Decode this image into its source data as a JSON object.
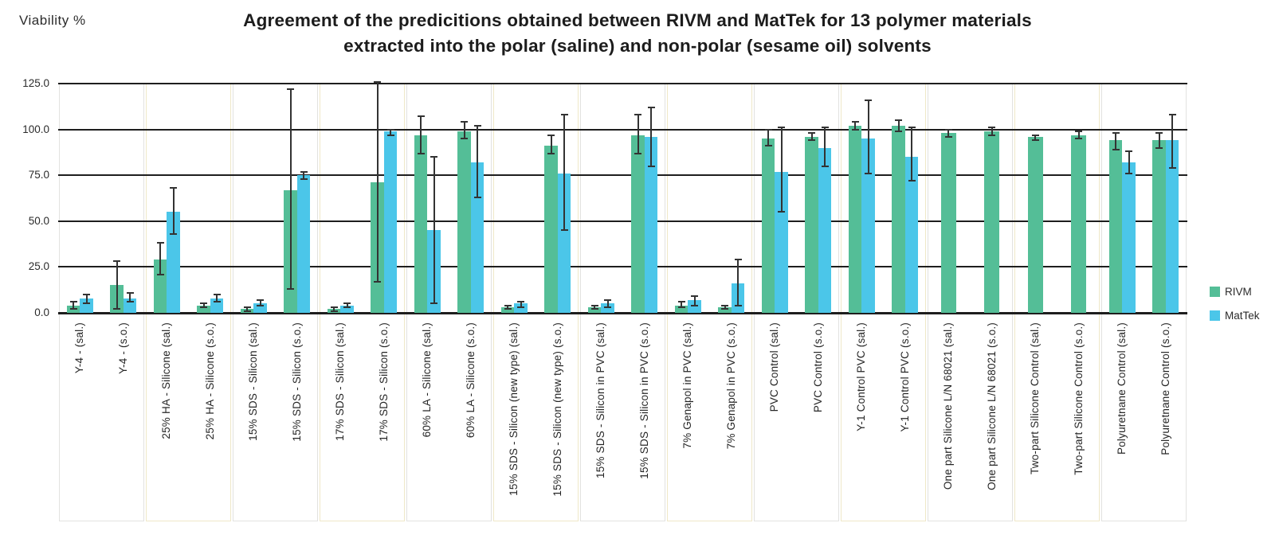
{
  "y_axis_title": "Viability %",
  "title": {
    "line1": "Agreement of the predicitions obtained between RIVM and MatTek for 13 polymer materials",
    "line2": "extracted into the polar (saline) and non-polar (sesame oil) solvents"
  },
  "legend": {
    "items": [
      {
        "label": "RIVM",
        "color": "#54BE97"
      },
      {
        "label": "MatTek",
        "color": "#4BC6E9"
      }
    ]
  },
  "chart_data": {
    "type": "bar",
    "title": "Agreement of the predicitions obtained between RIVM and MatTek for 13 polymer materials extracted into the polar (saline) and non-polar (sesame oil) solvents",
    "xlabel": "",
    "ylabel": "Viability %",
    "ylim": [
      0,
      125
    ],
    "yticks": [
      0,
      25,
      50,
      75,
      100,
      125
    ],
    "ytick_labels": [
      "0.0",
      "25.0",
      "50.0",
      "75.0",
      "100.0",
      "125.0"
    ],
    "grid": "horizontal-black",
    "legend_position": "right",
    "error_bars": true,
    "categories": [
      "Y-4 - (sal.)",
      "Y-4 - (s.o.)",
      "25% HA - Silicone (sal.)",
      "25% HA - Silicone (s.o.)",
      "15% SDS - Silicon (sal.)",
      "15% SDS - Silicon (s.o.)",
      "17% SDS - Silicon (sal.)",
      "17% SDS - Silicon (s.o.)",
      "60% LA - Silicone (sal.)",
      "60% LA - Silicone (s.o.)",
      "15% SDS - Silicon (new type) (sal.)",
      "15% SDS - Silicon (new type) (s.o.)",
      "15% SDS - Silicon in PVC (sal.)",
      "15% SDS - Silicon in PVC (s.o.)",
      "7% Genapol in PVC (sal.)",
      "7% Genapol in PVC (s.o.)",
      "PVC Control (sal.)",
      "PVC Control (s.o.)",
      "Y-1 Control PVC (sal.)",
      "Y-1 Control PVC (s.o.)",
      "One part Silicone L/N 68021 (sal.)",
      "One part Silicone L/N 68021 (s.o.)",
      "Two-part Silicone Control (sal.)",
      "Two-part Silicone Control (s.o.)",
      "Polyuretnane Control (sal.)",
      "Polyuretnane Control (s.o.)"
    ],
    "series": [
      {
        "name": "RIVM",
        "color": "#54BE97",
        "values": [
          4,
          15,
          29,
          4,
          2,
          67,
          2,
          71,
          97,
          99,
          3,
          91,
          3,
          97,
          4,
          3,
          95,
          96,
          102,
          102,
          98,
          99,
          96,
          97,
          94,
          94
        ],
        "error_low": [
          2,
          2,
          21,
          3,
          1,
          13,
          1,
          17,
          87,
          95,
          2,
          87,
          2,
          87,
          3,
          2,
          91,
          94,
          100,
          99,
          96,
          97,
          94,
          95,
          89,
          90
        ],
        "error_high": [
          6,
          28,
          38,
          5,
          3,
          122,
          3,
          126,
          107,
          104,
          4,
          97,
          4,
          108,
          6,
          4,
          100,
          98,
          104,
          105,
          100,
          101,
          97,
          99,
          98,
          98
        ]
      },
      {
        "name": "MatTek",
        "color": "#4BC6E9",
        "values": [
          8,
          8,
          55,
          8,
          5,
          75,
          4,
          99,
          45,
          82,
          5,
          76,
          5,
          96,
          7,
          16,
          77,
          90,
          95,
          85,
          null,
          null,
          null,
          null,
          82,
          94
        ],
        "error_low": [
          5,
          6,
          43,
          6,
          4,
          73,
          3,
          97,
          5,
          63,
          3,
          45,
          3,
          80,
          4,
          4,
          55,
          80,
          76,
          72,
          null,
          null,
          null,
          null,
          76,
          79
        ],
        "error_high": [
          10,
          11,
          68,
          10,
          7,
          77,
          5,
          100,
          85,
          102,
          6,
          108,
          7,
          112,
          9,
          29,
          101,
          101,
          116,
          101,
          null,
          null,
          null,
          null,
          88,
          108
        ]
      }
    ],
    "group_box_pairs": 13
  }
}
